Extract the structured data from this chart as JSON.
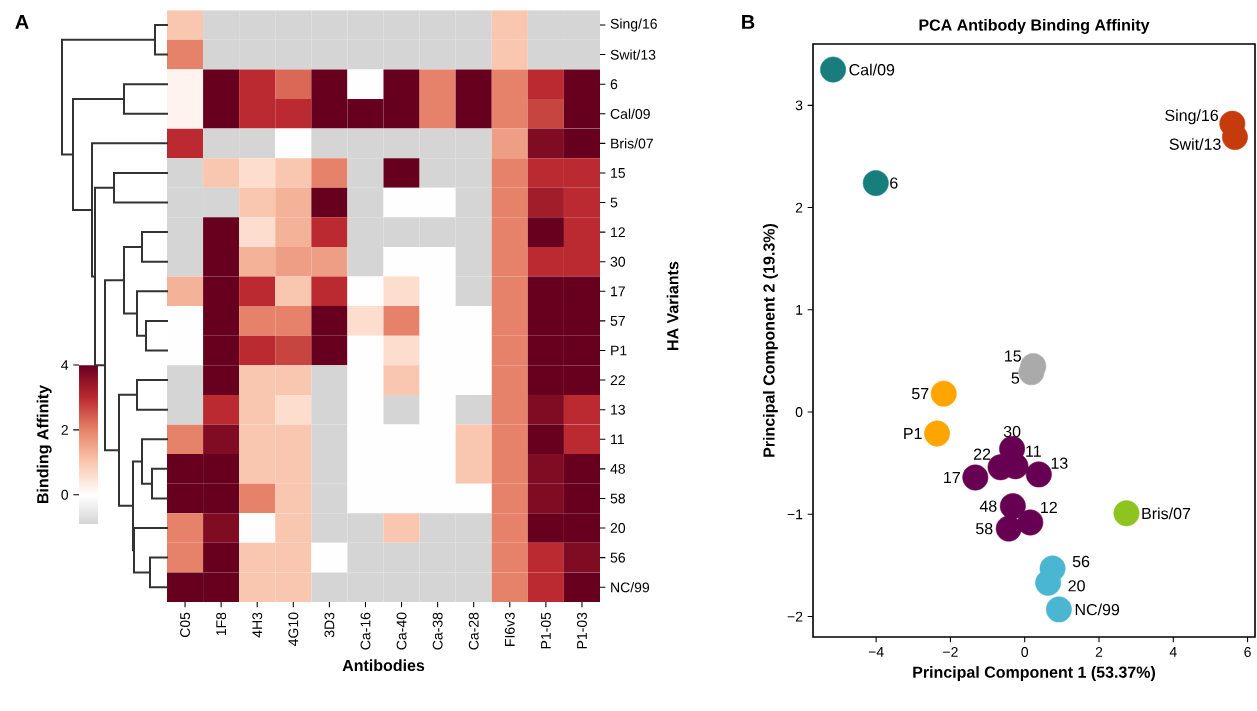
{
  "chart_data": [
    {
      "type": "heatmap",
      "annotations": [
        "A"
      ],
      "xlabel": "Antibodies",
      "ylabel": "HA Variants",
      "clabel": "Binding Affinity",
      "categories": [
        "C05",
        "1F8",
        "4H3",
        "4G10",
        "3D3",
        "Ca-16",
        "Ca-40",
        "Ca-38",
        "Ca-28",
        "FI6v3",
        "P1-05",
        "P1-03"
      ],
      "y_categories": [
        "Sing/16",
        "Swit/13",
        "6",
        "Cal/09",
        "Bris/07",
        "15",
        "5",
        "12",
        "30",
        "17",
        "57",
        "P1",
        "22",
        "13",
        "11",
        "48",
        "58",
        "20",
        "56",
        "NC/99"
      ],
      "cells": [
        [
          1.0,
          -0.9,
          -0.9,
          -0.9,
          -0.9,
          -0.9,
          -0.9,
          -0.9,
          -0.9,
          1.0,
          -0.9,
          -0.9
        ],
        [
          2.0,
          -0.9,
          -0.9,
          -0.9,
          -0.9,
          -0.9,
          -0.9,
          -0.9,
          -0.9,
          1.0,
          -0.9,
          -0.9
        ],
        [
          0.2,
          4.0,
          3.0,
          2.3,
          4.0,
          0.0,
          4.0,
          2.0,
          4.0,
          2.0,
          3.0,
          4.0
        ],
        [
          0.2,
          4.0,
          3.0,
          3.0,
          4.0,
          4.0,
          4.0,
          2.0,
          4.0,
          2.0,
          2.7,
          4.0
        ],
        [
          3.0,
          -0.9,
          -0.9,
          0.0,
          -0.9,
          -0.9,
          -0.9,
          -0.9,
          -0.9,
          1.6,
          3.7,
          4.0
        ],
        [
          -0.9,
          1.0,
          0.6,
          1.0,
          2.0,
          -0.9,
          4.0,
          -0.9,
          -0.9,
          2.0,
          3.0,
          3.0
        ],
        [
          -0.9,
          -0.9,
          1.0,
          1.3,
          4.0,
          -0.9,
          0.0,
          0.0,
          -0.9,
          2.0,
          3.3,
          3.0
        ],
        [
          -0.9,
          4.0,
          0.6,
          1.3,
          3.0,
          -0.9,
          -0.9,
          -0.9,
          -0.9,
          2.0,
          4.0,
          3.0
        ],
        [
          -0.9,
          4.0,
          1.3,
          1.6,
          1.6,
          -0.9,
          0.0,
          0.0,
          -0.9,
          2.0,
          3.0,
          3.0
        ],
        [
          1.3,
          4.0,
          3.0,
          1.0,
          3.0,
          0.0,
          0.6,
          0.0,
          -0.9,
          2.0,
          4.0,
          4.0
        ],
        [
          0.0,
          4.0,
          2.0,
          2.0,
          4.0,
          0.6,
          2.0,
          0.0,
          0.0,
          2.0,
          4.0,
          4.0
        ],
        [
          0.0,
          4.0,
          3.0,
          2.7,
          4.0,
          0.0,
          0.6,
          0.0,
          0.0,
          2.0,
          4.0,
          4.0
        ],
        [
          -0.9,
          4.0,
          1.0,
          1.0,
          -0.9,
          0.0,
          1.0,
          0.0,
          0.0,
          2.0,
          4.0,
          4.0
        ],
        [
          -0.9,
          3.0,
          1.0,
          0.6,
          -0.9,
          0.0,
          -0.9,
          0.0,
          -0.9,
          2.0,
          3.7,
          3.0
        ],
        [
          2.0,
          3.7,
          1.0,
          1.0,
          -0.9,
          0.0,
          0.0,
          0.0,
          1.0,
          2.0,
          4.0,
          3.0
        ],
        [
          4.0,
          4.0,
          1.0,
          1.0,
          -0.9,
          0.0,
          0.0,
          0.0,
          1.0,
          2.0,
          3.7,
          4.0
        ],
        [
          4.0,
          4.0,
          2.0,
          1.0,
          -0.9,
          0.0,
          0.0,
          0.0,
          0.0,
          2.0,
          3.7,
          4.0
        ],
        [
          2.0,
          3.7,
          0.0,
          1.0,
          -0.9,
          -0.9,
          1.0,
          -0.9,
          -0.9,
          2.0,
          4.0,
          4.0
        ],
        [
          2.0,
          4.0,
          1.0,
          1.0,
          0.0,
          -0.9,
          -0.9,
          -0.9,
          -0.9,
          2.0,
          3.0,
          3.7
        ],
        [
          4.0,
          4.0,
          1.0,
          1.0,
          -0.9,
          -0.9,
          -0.9,
          -0.9,
          -0.9,
          2.0,
          3.0,
          4.0
        ]
      ],
      "clim": [
        -0.9,
        4
      ],
      "cticks": [
        0,
        2,
        4
      ]
    },
    {
      "type": "scatter",
      "title": "PCA Antibody Binding Affinity",
      "xlabel": "Principal Component 1 (53.37%)",
      "ylabel": "Principal Component 2 (19.3%)",
      "xlim": [
        -5.7,
        6.2
      ],
      "ylim": [
        -2.2,
        3.6
      ],
      "xticks": [
        {
          "value": -4,
          "label": "−4"
        },
        {
          "value": -2,
          "label": "−2"
        },
        0,
        2,
        4,
        6
      ],
      "yticks": [
        {
          "value": -2,
          "label": "−2"
        },
        {
          "value": -1,
          "label": "−1"
        },
        0,
        1,
        2,
        3
      ],
      "series": [
        {
          "color": "#177d7d",
          "x": [
            -5.16,
            -4.01
          ],
          "values": [
            3.35,
            2.24
          ]
        },
        {
          "color": "#c63b0c",
          "x": [
            5.59,
            5.66
          ],
          "values": [
            2.82,
            2.69
          ]
        },
        {
          "color": "#aaaaaa",
          "x": [
            0.23,
            0.18
          ],
          "values": [
            0.45,
            0.39
          ]
        },
        {
          "color": "#ffa500",
          "x": [
            -2.18,
            -2.36
          ],
          "values": [
            0.18,
            -0.21
          ]
        },
        {
          "color": "#670052",
          "x": [
            -0.34,
            -0.25,
            0.38,
            -0.65,
            -1.33,
            -0.32,
            0.15,
            -0.43
          ],
          "values": [
            -0.36,
            -0.53,
            -0.61,
            -0.54,
            -0.64,
            -0.92,
            -1.08,
            -1.14
          ]
        },
        {
          "color": "#8fc31f",
          "x": [
            2.74
          ],
          "values": [
            -0.99
          ]
        },
        {
          "color": "#4bb6d1",
          "x": [
            0.75,
            0.63,
            0.92
          ],
          "values": [
            -1.53,
            -1.67,
            -1.93
          ]
        }
      ],
      "annotations": [
        "B",
        {
          "text": "Cal/09",
          "x": -5.16,
          "y": 3.35
        },
        {
          "text": "6",
          "x": -4.01,
          "y": 2.24
        },
        {
          "text": "Sing/16",
          "x": 5.59,
          "y": 2.82
        },
        {
          "text": "Swit/13",
          "x": 5.66,
          "y": 2.69
        },
        {
          "text": "15",
          "x": 0.23,
          "y": 0.45
        },
        {
          "text": "5",
          "x": 0.18,
          "y": 0.39
        },
        {
          "text": "57",
          "x": -2.18,
          "y": 0.18
        },
        {
          "text": "P1",
          "x": -2.36,
          "y": -0.21
        },
        {
          "text": "30",
          "x": -0.34,
          "y": -0.36
        },
        {
          "text": "11",
          "x": -0.25,
          "y": -0.53
        },
        {
          "text": "13",
          "x": 0.38,
          "y": -0.61
        },
        {
          "text": "22",
          "x": -0.65,
          "y": -0.54
        },
        {
          "text": "17",
          "x": -1.33,
          "y": -0.64
        },
        {
          "text": "48",
          "x": -0.32,
          "y": -0.92
        },
        {
          "text": "12",
          "x": 0.15,
          "y": -1.08
        },
        {
          "text": "58",
          "x": -0.43,
          "y": -1.14
        },
        {
          "text": "Bris/07",
          "x": 2.74,
          "y": -0.99
        },
        {
          "text": "56",
          "x": 0.75,
          "y": -1.53
        },
        {
          "text": "20",
          "x": 0.63,
          "y": -1.67
        },
        {
          "text": "NC/99",
          "x": 0.92,
          "y": -1.93
        }
      ]
    }
  ]
}
